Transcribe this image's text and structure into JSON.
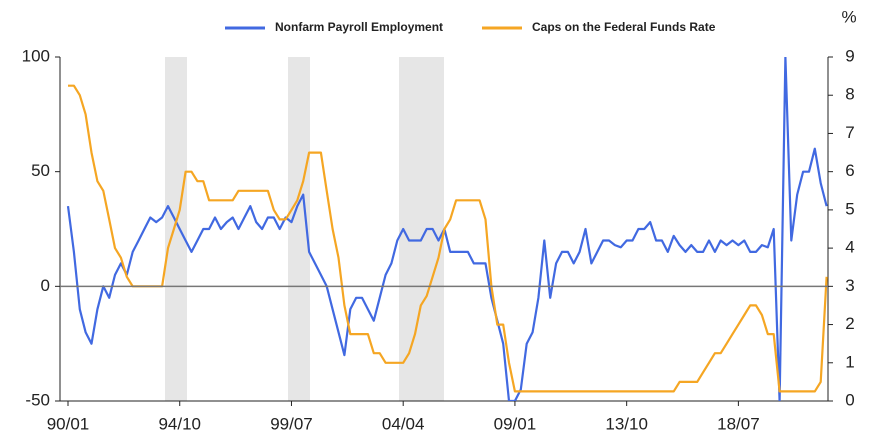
{
  "chart_data": {
    "type": "line",
    "y2_label": "%",
    "categories": [
      "90/01",
      null,
      null,
      null,
      null,
      null,
      null,
      null,
      null,
      null,
      null,
      null,
      null,
      null,
      null,
      null,
      null,
      null,
      null,
      "94/10",
      null,
      null,
      null,
      null,
      null,
      null,
      null,
      null,
      null,
      null,
      null,
      null,
      null,
      null,
      null,
      null,
      null,
      null,
      "99/07",
      null,
      null,
      null,
      null,
      null,
      null,
      null,
      null,
      null,
      null,
      null,
      null,
      null,
      null,
      null,
      null,
      null,
      null,
      "04/04",
      null,
      null,
      null,
      null,
      null,
      null,
      null,
      null,
      null,
      null,
      null,
      null,
      null,
      null,
      null,
      null,
      null,
      null,
      "09/01",
      null,
      null,
      null,
      null,
      null,
      null,
      null,
      null,
      null,
      null,
      null,
      null,
      null,
      null,
      null,
      null,
      null,
      null,
      "13/10",
      null,
      null,
      null,
      null,
      null,
      null,
      null,
      null,
      null,
      null,
      null,
      null,
      null,
      null,
      null,
      null,
      null,
      null,
      "18/07",
      null,
      null,
      null,
      null,
      null,
      null,
      null,
      null,
      null,
      null,
      null,
      null,
      null,
      null,
      null
    ],
    "series": [
      {
        "name": "Nonfarm Payroll Employment",
        "color": "#4169e1",
        "values": [
          35,
          15,
          -10,
          -20,
          -25,
          -10,
          0,
          -5,
          5,
          10,
          5,
          15,
          20,
          25,
          30,
          28,
          30,
          35,
          30,
          25,
          20,
          15,
          20,
          25,
          25,
          30,
          25,
          28,
          30,
          25,
          30,
          35,
          28,
          25,
          30,
          30,
          25,
          30,
          28,
          35,
          40,
          15,
          10,
          5,
          0,
          -10,
          -20,
          -30,
          -10,
          -5,
          -5,
          -10,
          -15,
          -5,
          5,
          10,
          20,
          25,
          20,
          20,
          20,
          25,
          25,
          20,
          25,
          15,
          15,
          15,
          15,
          10,
          10,
          10,
          -5,
          -15,
          -25,
          -50,
          -50,
          -45,
          -25,
          -20,
          -5,
          20,
          -5,
          10,
          15,
          15,
          10,
          15,
          25,
          10,
          15,
          20,
          20,
          18,
          17,
          20,
          20,
          25,
          25,
          28,
          20,
          20,
          15,
          22,
          18,
          15,
          18,
          15,
          15,
          20,
          15,
          20,
          18,
          20,
          18,
          20,
          15,
          15,
          18,
          17,
          25,
          -50,
          100,
          20,
          40,
          50,
          50,
          60,
          45,
          35
        ]
      },
      {
        "name": "Caps on the Federal Funds Rate",
        "color": "#f5a623",
        "axis": "y2",
        "values": [
          8.25,
          8.25,
          8.0,
          7.5,
          6.5,
          5.75,
          5.5,
          4.75,
          4.0,
          3.75,
          3.25,
          3.0,
          3.0,
          3.0,
          3.0,
          3.0,
          3.0,
          4.0,
          4.5,
          5.0,
          6.0,
          6.0,
          5.75,
          5.75,
          5.25,
          5.25,
          5.25,
          5.25,
          5.25,
          5.5,
          5.5,
          5.5,
          5.5,
          5.5,
          5.5,
          5.0,
          4.75,
          4.75,
          5.0,
          5.25,
          5.75,
          6.5,
          6.5,
          6.5,
          5.5,
          4.5,
          3.75,
          2.5,
          1.75,
          1.75,
          1.75,
          1.75,
          1.25,
          1.25,
          1.0,
          1.0,
          1.0,
          1.0,
          1.25,
          1.75,
          2.5,
          2.75,
          3.25,
          3.75,
          4.5,
          4.75,
          5.25,
          5.25,
          5.25,
          5.25,
          5.25,
          4.75,
          3.0,
          2.0,
          2.0,
          1.0,
          0.25,
          0.25,
          0.25,
          0.25,
          0.25,
          0.25,
          0.25,
          0.25,
          0.25,
          0.25,
          0.25,
          0.25,
          0.25,
          0.25,
          0.25,
          0.25,
          0.25,
          0.25,
          0.25,
          0.25,
          0.25,
          0.25,
          0.25,
          0.25,
          0.25,
          0.25,
          0.25,
          0.25,
          0.5,
          0.5,
          0.5,
          0.5,
          0.75,
          1.0,
          1.25,
          1.25,
          1.5,
          1.75,
          2.0,
          2.25,
          2.5,
          2.5,
          2.25,
          1.75,
          1.75,
          0.25,
          0.25,
          0.25,
          0.25,
          0.25,
          0.25,
          0.25,
          0.5,
          3.25
        ]
      }
    ],
    "ylim": [
      -50,
      100
    ],
    "yticks": [
      -50,
      0,
      50,
      100
    ],
    "y2lim": [
      0,
      9
    ],
    "y2ticks": [
      0,
      1,
      2,
      3,
      4,
      5,
      6,
      7,
      8,
      9
    ],
    "grid": false
  }
}
